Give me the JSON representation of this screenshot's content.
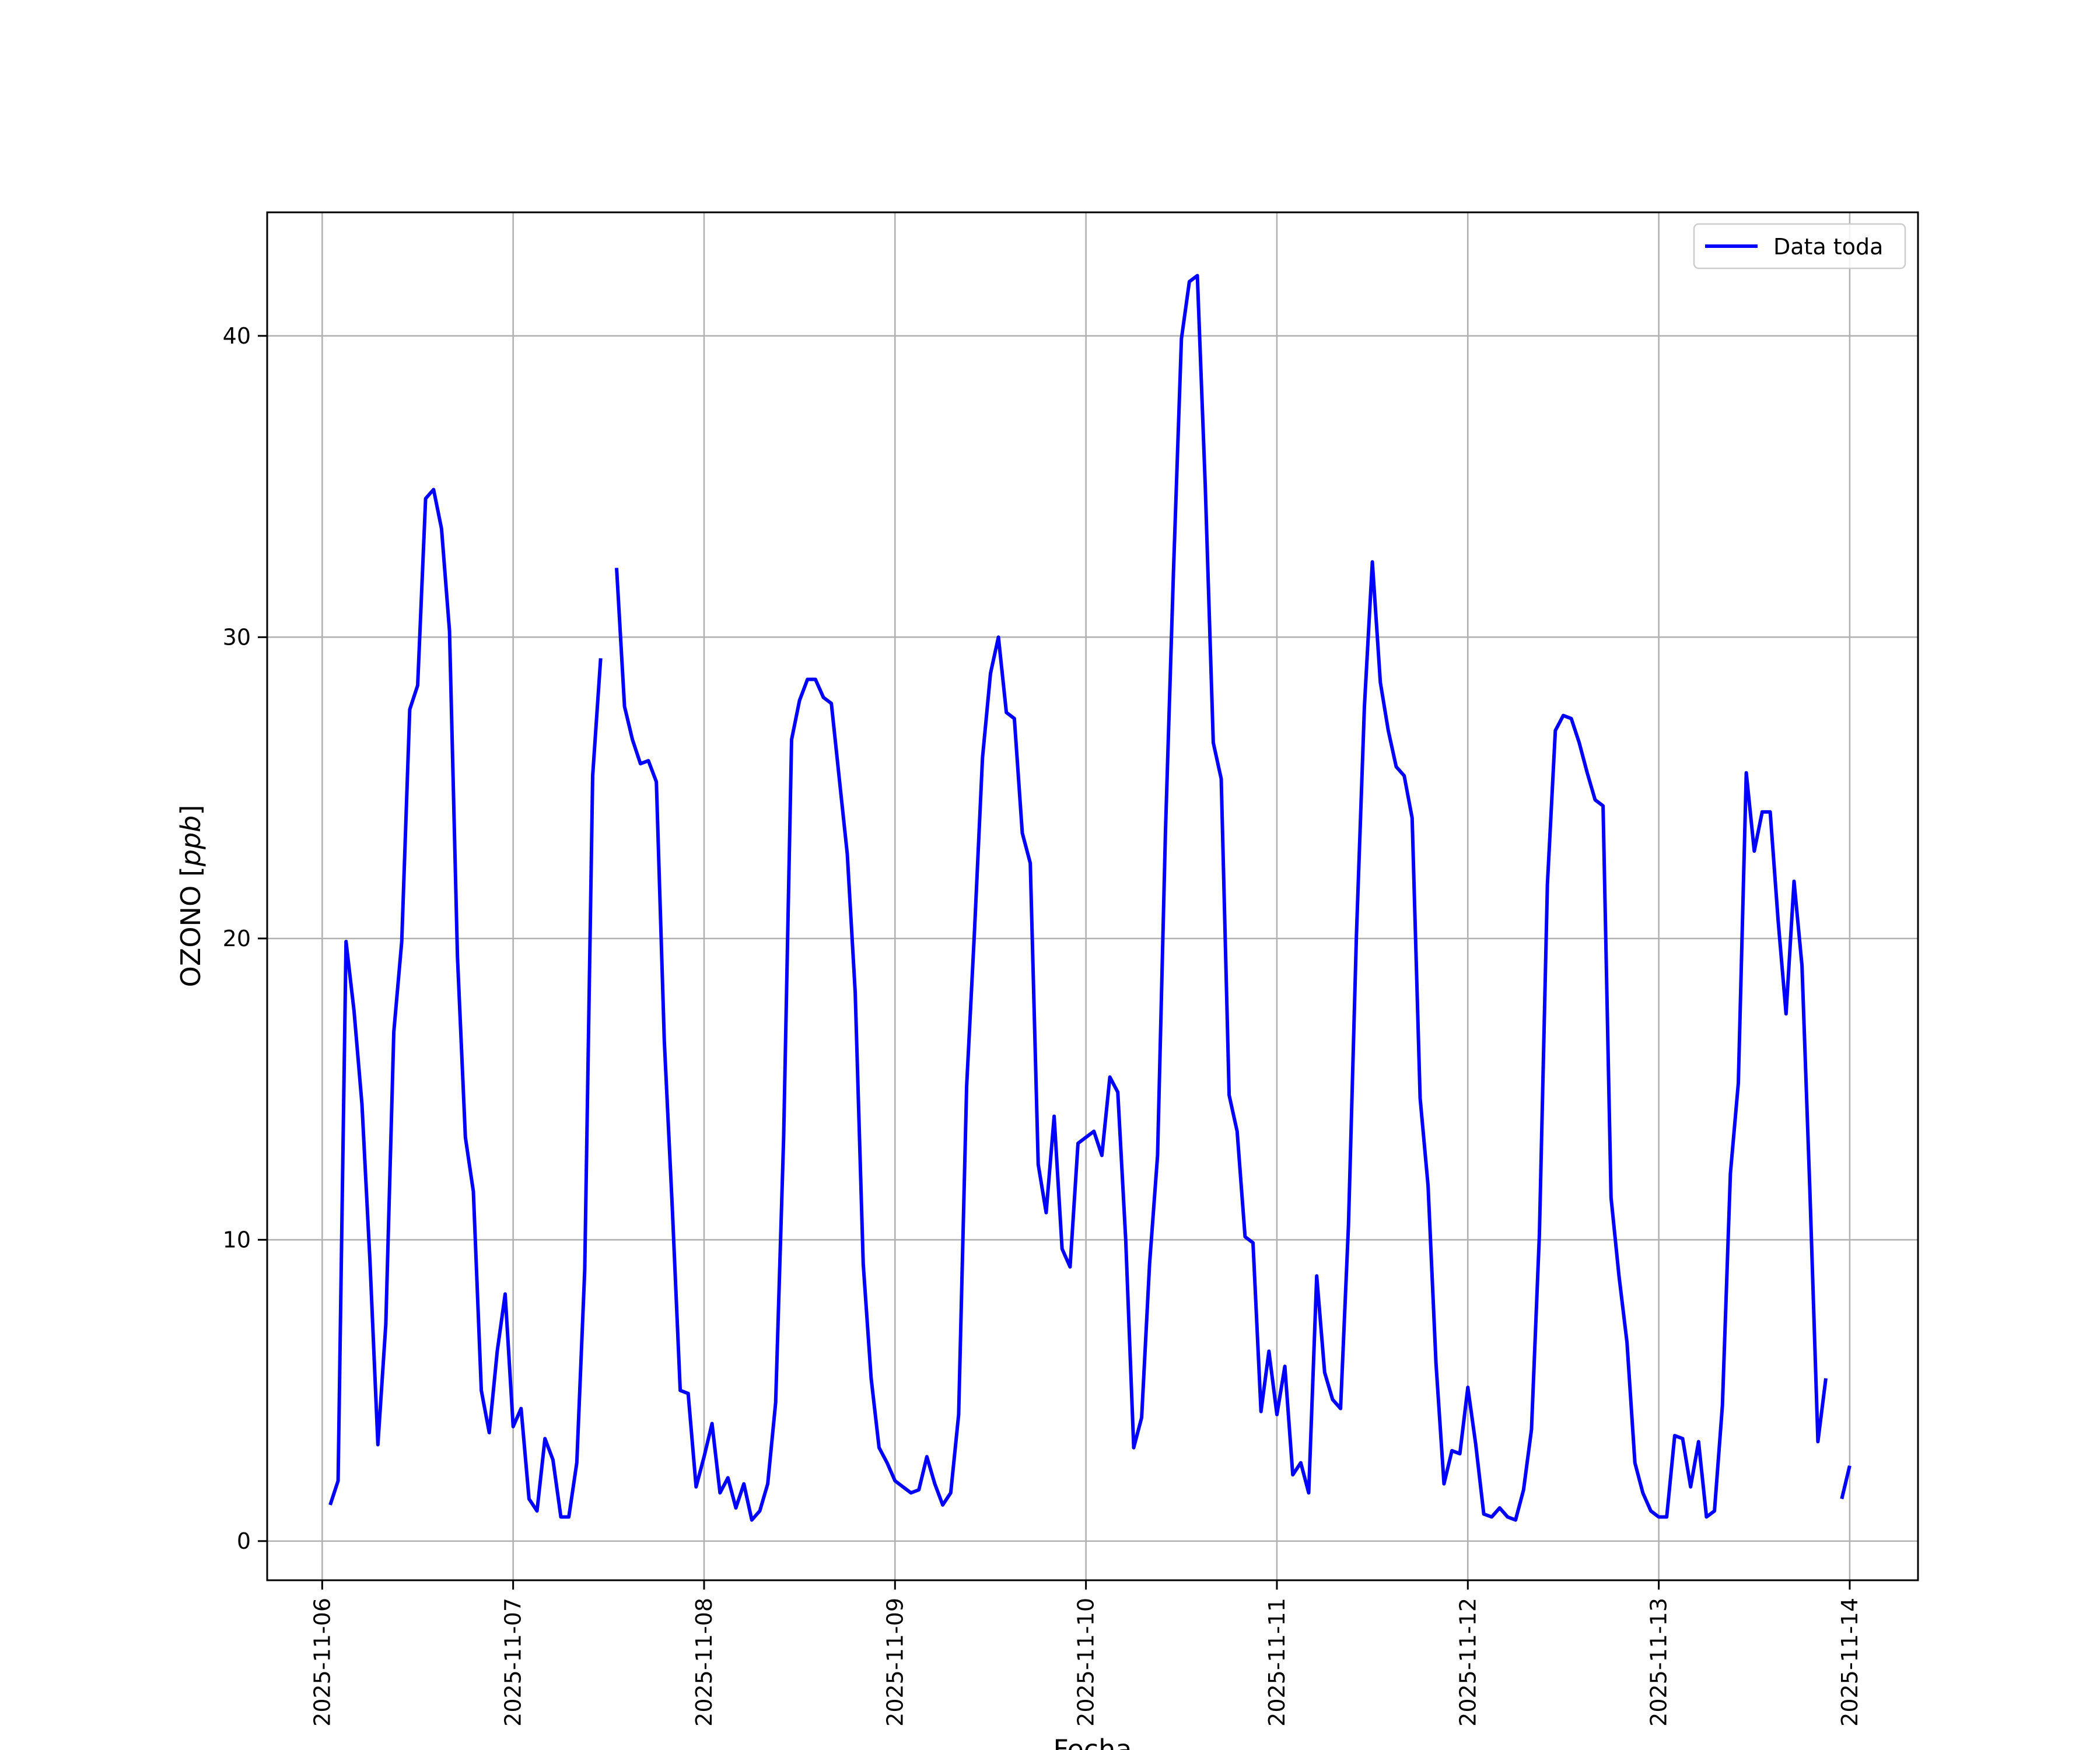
{
  "chart_data": {
    "type": "line",
    "xlabel": "Fecha",
    "ylabel": "OZONO [ppb]",
    "ylabel_prefix": "OZONO [",
    "ylabel_unit": "ppb",
    "ylabel_suffix": "]",
    "x_ticks": [
      "2025-11-06",
      "2025-11-07",
      "2025-11-08",
      "2025-11-09",
      "2025-11-10",
      "2025-11-11",
      "2025-11-12",
      "2025-11-13",
      "2025-11-14"
    ],
    "y_ticks": [
      0,
      10,
      20,
      30,
      40
    ],
    "xlim": [
      "2025-11-05T17:05",
      "2025-11-14T08:35"
    ],
    "ylim": [
      -1.3,
      44.1
    ],
    "grid": true,
    "legend_position": "top-right",
    "colors": {
      "series": "#0000ff",
      "grid": "#b0b0b0",
      "axes": "#000000"
    },
    "series": [
      {
        "name": "Data toda",
        "segments": [
          [
            [
              "2025-11-06T01:00",
              1.2
            ],
            [
              "2025-11-06T02:00",
              2.0
            ],
            [
              "2025-11-06T03:00",
              19.9
            ],
            [
              "2025-11-06T04:00",
              17.6
            ],
            [
              "2025-11-06T05:00",
              14.5
            ],
            [
              "2025-11-06T06:00",
              9.3
            ],
            [
              "2025-11-06T07:00",
              3.2
            ],
            [
              "2025-11-06T08:00",
              7.2
            ],
            [
              "2025-11-06T09:00",
              16.9
            ],
            [
              "2025-11-06T10:00",
              19.9
            ],
            [
              "2025-11-06T11:00",
              27.6
            ],
            [
              "2025-11-06T12:00",
              28.4
            ],
            [
              "2025-11-06T13:00",
              34.6
            ],
            [
              "2025-11-06T14:00",
              34.9
            ],
            [
              "2025-11-06T15:00",
              33.6
            ],
            [
              "2025-11-06T16:00",
              30.2
            ],
            [
              "2025-11-06T17:00",
              19.4
            ],
            [
              "2025-11-06T18:00",
              13.4
            ],
            [
              "2025-11-06T19:00",
              11.6
            ],
            [
              "2025-11-06T20:00",
              5.0
            ],
            [
              "2025-11-06T21:00",
              3.6
            ],
            [
              "2025-11-06T22:00",
              6.3
            ],
            [
              "2025-11-06T23:00",
              8.2
            ],
            [
              "2025-11-07T00:00",
              3.8
            ],
            [
              "2025-11-07T01:00",
              4.4
            ],
            [
              "2025-11-07T02:00",
              1.4
            ],
            [
              "2025-11-07T03:00",
              1.0
            ],
            [
              "2025-11-07T04:00",
              3.4
            ],
            [
              "2025-11-07T05:00",
              2.7
            ],
            [
              "2025-11-07T06:00",
              0.8
            ],
            [
              "2025-11-07T07:00",
              0.8
            ],
            [
              "2025-11-07T08:00",
              2.6
            ],
            [
              "2025-11-07T09:00",
              9.0
            ],
            [
              "2025-11-07T10:00",
              25.4
            ],
            [
              "2025-11-07T11:00",
              29.3
            ]
          ],
          [
            [
              "2025-11-07T13:00",
              32.3
            ],
            [
              "2025-11-07T14:00",
              27.7
            ],
            [
              "2025-11-07T15:00",
              26.6
            ],
            [
              "2025-11-07T16:00",
              25.8
            ],
            [
              "2025-11-07T17:00",
              25.9
            ],
            [
              "2025-11-07T18:00",
              25.2
            ],
            [
              "2025-11-07T19:00",
              16.6
            ],
            [
              "2025-11-07T20:00",
              11.1
            ],
            [
              "2025-11-07T21:00",
              5.0
            ],
            [
              "2025-11-07T22:00",
              4.9
            ],
            [
              "2025-11-07T23:00",
              1.8
            ],
            [
              "2025-11-08T00:00",
              2.8
            ],
            [
              "2025-11-08T01:00",
              3.9
            ],
            [
              "2025-11-08T02:00",
              1.6
            ],
            [
              "2025-11-08T03:00",
              2.1
            ],
            [
              "2025-11-08T04:00",
              1.1
            ],
            [
              "2025-11-08T05:00",
              1.9
            ],
            [
              "2025-11-08T06:00",
              0.7
            ],
            [
              "2025-11-08T07:00",
              1.0
            ],
            [
              "2025-11-08T08:00",
              1.9
            ],
            [
              "2025-11-08T09:00",
              4.6
            ],
            [
              "2025-11-08T10:00",
              13.4
            ],
            [
              "2025-11-08T11:00",
              26.6
            ],
            [
              "2025-11-08T12:00",
              27.9
            ],
            [
              "2025-11-08T13:00",
              28.6
            ],
            [
              "2025-11-08T14:00",
              28.6
            ],
            [
              "2025-11-08T15:00",
              28.0
            ],
            [
              "2025-11-08T16:00",
              27.8
            ],
            [
              "2025-11-08T17:00",
              25.3
            ],
            [
              "2025-11-08T18:00",
              22.8
            ],
            [
              "2025-11-08T19:00",
              18.2
            ],
            [
              "2025-11-08T20:00",
              9.2
            ],
            [
              "2025-11-08T21:00",
              5.4
            ],
            [
              "2025-11-08T22:00",
              3.1
            ],
            [
              "2025-11-08T23:00",
              2.6
            ],
            [
              "2025-11-09T00:00",
              2.0
            ],
            [
              "2025-11-09T01:00",
              1.8
            ],
            [
              "2025-11-09T02:00",
              1.6
            ],
            [
              "2025-11-09T03:00",
              1.7
            ],
            [
              "2025-11-09T04:00",
              2.8
            ],
            [
              "2025-11-09T05:00",
              1.9
            ],
            [
              "2025-11-09T06:00",
              1.2
            ],
            [
              "2025-11-09T07:00",
              1.6
            ],
            [
              "2025-11-09T08:00",
              4.2
            ],
            [
              "2025-11-09T09:00",
              15.1
            ],
            [
              "2025-11-09T10:00",
              20.3
            ],
            [
              "2025-11-09T11:00",
              26.0
            ],
            [
              "2025-11-09T12:00",
              28.8
            ],
            [
              "2025-11-09T13:00",
              30.0
            ],
            [
              "2025-11-09T14:00",
              27.5
            ],
            [
              "2025-11-09T15:00",
              27.3
            ],
            [
              "2025-11-09T16:00",
              23.5
            ],
            [
              "2025-11-09T17:00",
              22.5
            ],
            [
              "2025-11-09T18:00",
              12.5
            ],
            [
              "2025-11-09T19:00",
              10.9
            ],
            [
              "2025-11-09T20:00",
              14.1
            ],
            [
              "2025-11-09T21:00",
              9.7
            ],
            [
              "2025-11-09T22:00",
              9.1
            ],
            [
              "2025-11-09T23:00",
              13.2
            ],
            [
              "2025-11-10T00:00",
              13.4
            ],
            [
              "2025-11-10T01:00",
              13.6
            ],
            [
              "2025-11-10T02:00",
              12.8
            ],
            [
              "2025-11-10T03:00",
              15.4
            ],
            [
              "2025-11-10T04:00",
              14.9
            ],
            [
              "2025-11-10T05:00",
              10.0
            ],
            [
              "2025-11-10T06:00",
              3.1
            ],
            [
              "2025-11-10T07:00",
              4.1
            ],
            [
              "2025-11-10T08:00",
              9.2
            ],
            [
              "2025-11-10T09:00",
              12.8
            ],
            [
              "2025-11-10T10:00",
              23.6
            ],
            [
              "2025-11-10T11:00",
              32.2
            ],
            [
              "2025-11-10T12:00",
              39.9
            ],
            [
              "2025-11-10T13:00",
              41.8
            ],
            [
              "2025-11-10T14:00",
              42.0
            ],
            [
              "2025-11-10T15:00",
              35.0
            ],
            [
              "2025-11-10T16:00",
              26.5
            ],
            [
              "2025-11-10T17:00",
              25.3
            ],
            [
              "2025-11-10T18:00",
              14.8
            ],
            [
              "2025-11-10T19:00",
              13.6
            ],
            [
              "2025-11-10T20:00",
              10.1
            ],
            [
              "2025-11-10T21:00",
              9.9
            ],
            [
              "2025-11-10T22:00",
              4.3
            ],
            [
              "2025-11-10T23:00",
              6.3
            ],
            [
              "2025-11-11T00:00",
              4.2
            ],
            [
              "2025-11-11T01:00",
              5.8
            ],
            [
              "2025-11-11T02:00",
              2.2
            ],
            [
              "2025-11-11T03:00",
              2.6
            ],
            [
              "2025-11-11T04:00",
              1.6
            ],
            [
              "2025-11-11T05:00",
              8.8
            ],
            [
              "2025-11-11T06:00",
              5.6
            ],
            [
              "2025-11-11T07:00",
              4.7
            ],
            [
              "2025-11-11T08:00",
              4.4
            ],
            [
              "2025-11-11T09:00",
              10.5
            ],
            [
              "2025-11-11T10:00",
              20.1
            ],
            [
              "2025-11-11T11:00",
              27.7
            ],
            [
              "2025-11-11T12:00",
              32.5
            ],
            [
              "2025-11-11T13:00",
              28.5
            ],
            [
              "2025-11-11T14:00",
              26.9
            ],
            [
              "2025-11-11T15:00",
              25.7
            ],
            [
              "2025-11-11T16:00",
              25.4
            ],
            [
              "2025-11-11T17:00",
              24.0
            ],
            [
              "2025-11-11T18:00",
              14.7
            ],
            [
              "2025-11-11T19:00",
              11.8
            ],
            [
              "2025-11-11T20:00",
              5.9
            ],
            [
              "2025-11-11T21:00",
              1.9
            ],
            [
              "2025-11-11T22:00",
              3.0
            ],
            [
              "2025-11-11T23:00",
              2.9
            ],
            [
              "2025-11-12T00:00",
              5.1
            ],
            [
              "2025-11-12T01:00",
              3.2
            ],
            [
              "2025-11-12T02:00",
              0.9
            ],
            [
              "2025-11-12T03:00",
              0.8
            ],
            [
              "2025-11-12T04:00",
              1.1
            ],
            [
              "2025-11-12T05:00",
              0.8
            ],
            [
              "2025-11-12T06:00",
              0.7
            ],
            [
              "2025-11-12T07:00",
              1.7
            ],
            [
              "2025-11-12T08:00",
              3.7
            ],
            [
              "2025-11-12T09:00",
              10.2
            ],
            [
              "2025-11-12T10:00",
              21.8
            ],
            [
              "2025-11-12T11:00",
              26.9
            ],
            [
              "2025-11-12T12:00",
              27.4
            ],
            [
              "2025-11-12T13:00",
              27.3
            ],
            [
              "2025-11-12T14:00",
              26.5
            ],
            [
              "2025-11-12T15:00",
              25.5
            ],
            [
              "2025-11-12T16:00",
              24.6
            ],
            [
              "2025-11-12T17:00",
              24.4
            ],
            [
              "2025-11-12T18:00",
              11.4
            ],
            [
              "2025-11-12T19:00",
              8.8
            ],
            [
              "2025-11-12T20:00",
              6.6
            ],
            [
              "2025-11-12T21:00",
              2.6
            ],
            [
              "2025-11-12T22:00",
              1.6
            ],
            [
              "2025-11-12T23:00",
              1.0
            ],
            [
              "2025-11-13T00:00",
              0.8
            ],
            [
              "2025-11-13T01:00",
              0.8
            ],
            [
              "2025-11-13T02:00",
              3.5
            ],
            [
              "2025-11-13T03:00",
              3.4
            ],
            [
              "2025-11-13T04:00",
              1.8
            ],
            [
              "2025-11-13T05:00",
              3.3
            ],
            [
              "2025-11-13T06:00",
              0.8
            ],
            [
              "2025-11-13T07:00",
              1.0
            ],
            [
              "2025-11-13T08:00",
              4.5
            ],
            [
              "2025-11-13T09:00",
              12.2
            ],
            [
              "2025-11-13T10:00",
              15.2
            ],
            [
              "2025-11-13T11:00",
              25.5
            ],
            [
              "2025-11-13T12:00",
              22.9
            ],
            [
              "2025-11-13T13:00",
              24.2
            ],
            [
              "2025-11-13T14:00",
              24.2
            ],
            [
              "2025-11-13T15:00",
              20.6
            ],
            [
              "2025-11-13T16:00",
              17.5
            ],
            [
              "2025-11-13T17:00",
              21.9
            ],
            [
              "2025-11-13T18:00",
              19.1
            ],
            [
              "2025-11-13T19:00",
              11.6
            ],
            [
              "2025-11-13T20:00",
              3.3
            ],
            [
              "2025-11-13T21:00",
              5.4
            ]
          ],
          [
            [
              "2025-11-13T23:00",
              1.4
            ],
            [
              "2025-11-14T00:00",
              2.5
            ]
          ]
        ]
      }
    ]
  }
}
